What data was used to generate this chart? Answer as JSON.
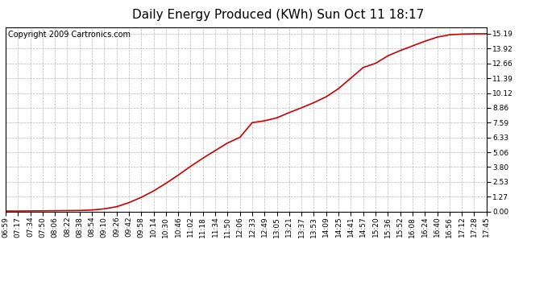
{
  "title": "Daily Energy Produced (KWh) Sun Oct 11 18:17",
  "copyright_text": "Copyright 2009 Cartronics.com",
  "line_color": "#cc0000",
  "background_color": "#ffffff",
  "plot_bg_color": "#ffffff",
  "grid_color": "#999999",
  "grid_style": "--",
  "yticks": [
    0.0,
    1.27,
    2.53,
    3.8,
    5.06,
    6.33,
    7.59,
    8.86,
    10.12,
    11.39,
    12.66,
    13.92,
    15.19
  ],
  "ylim": [
    0.0,
    15.75
  ],
  "xtick_labels": [
    "06:59",
    "07:17",
    "07:34",
    "07:50",
    "08:06",
    "08:22",
    "08:38",
    "08:54",
    "09:10",
    "09:26",
    "09:42",
    "09:58",
    "10:14",
    "10:30",
    "10:46",
    "11:02",
    "11:18",
    "11:34",
    "11:50",
    "12:06",
    "12:33",
    "12:49",
    "13:05",
    "13:21",
    "13:37",
    "13:53",
    "14:09",
    "14:25",
    "14:41",
    "14:57",
    "15:20",
    "15:36",
    "15:52",
    "16:08",
    "16:24",
    "16:40",
    "16:56",
    "17:12",
    "17:28",
    "17:45"
  ],
  "x_values": [
    0,
    1,
    2,
    3,
    4,
    5,
    6,
    7,
    8,
    9,
    10,
    11,
    12,
    13,
    14,
    15,
    16,
    17,
    18,
    19,
    20,
    21,
    22,
    23,
    24,
    25,
    26,
    27,
    28,
    29,
    30,
    31,
    32,
    33,
    34,
    35,
    36,
    37,
    38,
    39
  ],
  "y_values": [
    0.03,
    0.03,
    0.04,
    0.05,
    0.06,
    0.07,
    0.08,
    0.12,
    0.22,
    0.4,
    0.75,
    1.2,
    1.75,
    2.4,
    3.1,
    3.85,
    4.55,
    5.2,
    5.85,
    6.33,
    7.59,
    7.75,
    8.0,
    8.45,
    8.86,
    9.3,
    9.8,
    10.5,
    11.4,
    12.3,
    12.66,
    13.3,
    13.75,
    14.15,
    14.55,
    14.9,
    15.1,
    15.16,
    15.18,
    15.19
  ],
  "title_fontsize": 11,
  "tick_fontsize": 6.5,
  "copyright_fontsize": 7
}
